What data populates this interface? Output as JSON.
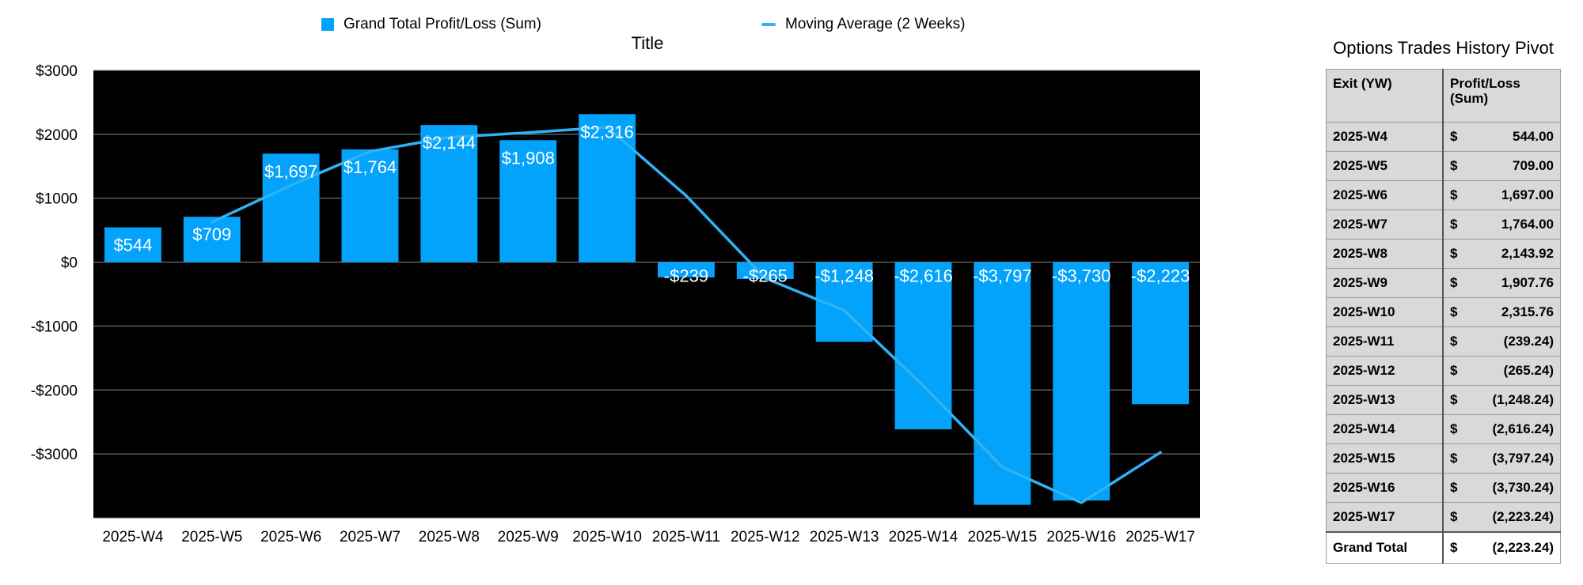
{
  "chart_data": {
    "type": "bar",
    "title": "Title",
    "categories": [
      "2025-W4",
      "2025-W5",
      "2025-W6",
      "2025-W7",
      "2025-W8",
      "2025-W9",
      "2025-W10",
      "2025-W11",
      "2025-W12",
      "2025-W13",
      "2025-W14",
      "2025-W15",
      "2025-W16",
      "2025-W17"
    ],
    "series": [
      {
        "name": "Grand Total Profit/Loss (Sum)",
        "type": "bar",
        "values": [
          544,
          709,
          1697,
          1764,
          2144,
          1908,
          2316,
          -239,
          -265,
          -1248,
          -2616,
          -3797,
          -3730,
          -2223
        ],
        "labels": [
          "$544",
          "$709",
          "$1,697",
          "$1,764",
          "$2,144",
          "$1,908",
          "$2,316",
          "-$239",
          "-$265",
          "-$1,248",
          "-$2,616",
          "-$3,797",
          "-$3,730",
          "-$2,223"
        ]
      },
      {
        "name": "Moving Average (2 Weeks)",
        "type": "line",
        "values": [
          null,
          627,
          1203,
          1731,
          1954,
          2026,
          2112,
          1039,
          -252,
          -757,
          -1932,
          -3207,
          -3764,
          -2977
        ]
      }
    ],
    "ylim": [
      -4000,
      3000
    ],
    "yticks": [
      3000,
      2000,
      1000,
      0,
      -1000,
      -2000,
      -3000
    ],
    "ytick_labels": [
      "$3000",
      "$2000",
      "$1000",
      "$0",
      "-$1000",
      "-$2000",
      "-$3000"
    ],
    "grid": true,
    "legend": "top",
    "colors": {
      "bar": "#03a2fb",
      "line": "#2eb3f5",
      "plot_background": "#000000",
      "grid": "#8a8a8a"
    }
  },
  "pivot": {
    "title": "Options Trades History Pivot",
    "header": {
      "col1": "Exit (YW)",
      "col2": "Profit/Loss (Sum)"
    },
    "rows": [
      {
        "label": "2025-W4",
        "currency": "$",
        "value": "544.00"
      },
      {
        "label": "2025-W5",
        "currency": "$",
        "value": "709.00"
      },
      {
        "label": "2025-W6",
        "currency": "$",
        "value": "1,697.00"
      },
      {
        "label": "2025-W7",
        "currency": "$",
        "value": "1,764.00"
      },
      {
        "label": "2025-W8",
        "currency": "$",
        "value": "2,143.92"
      },
      {
        "label": "2025-W9",
        "currency": "$",
        "value": "1,907.76"
      },
      {
        "label": "2025-W10",
        "currency": "$",
        "value": "2,315.76"
      },
      {
        "label": "2025-W11",
        "currency": "$",
        "value": "(239.24)"
      },
      {
        "label": "2025-W12",
        "currency": "$",
        "value": "(265.24)"
      },
      {
        "label": "2025-W13",
        "currency": "$",
        "value": "(1,248.24)"
      },
      {
        "label": "2025-W14",
        "currency": "$",
        "value": "(2,616.24)"
      },
      {
        "label": "2025-W15",
        "currency": "$",
        "value": "(3,797.24)"
      },
      {
        "label": "2025-W16",
        "currency": "$",
        "value": "(3,730.24)"
      },
      {
        "label": "2025-W17",
        "currency": "$",
        "value": "(2,223.24)"
      }
    ],
    "total": {
      "label": "Grand Total",
      "currency": "$",
      "value": "(2,223.24)"
    }
  }
}
